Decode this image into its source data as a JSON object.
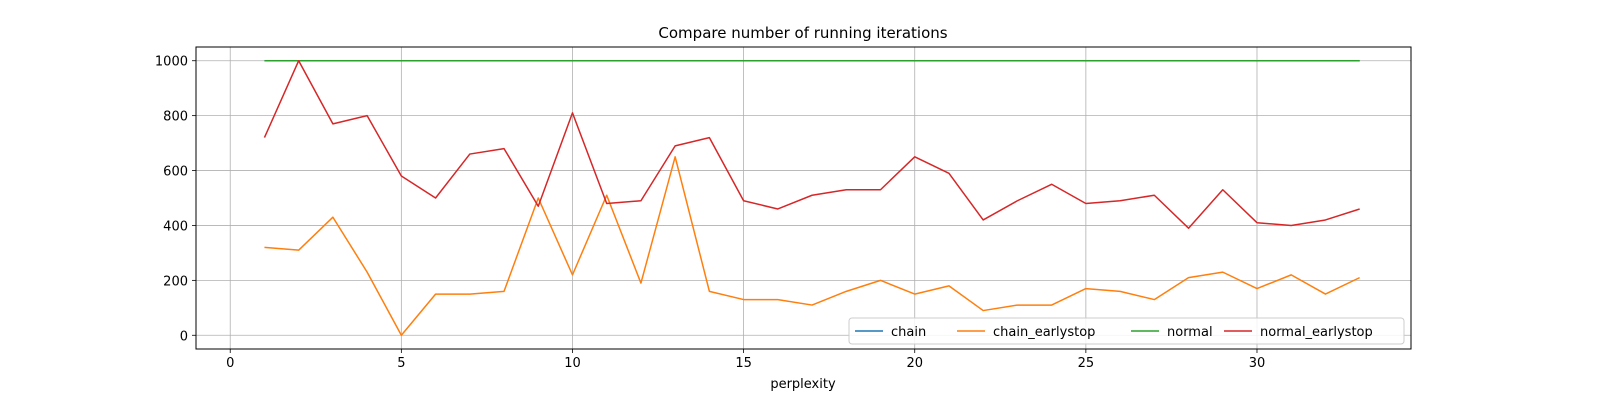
{
  "chart_data": {
    "type": "line",
    "title": "Compare number of running iterations",
    "xlabel": "perplexity",
    "ylabel": "",
    "xlim": [
      -1,
      34.5
    ],
    "ylim": [
      -50,
      1050
    ],
    "xticks": [
      0,
      5,
      10,
      15,
      20,
      25,
      30
    ],
    "yticks": [
      0,
      200,
      400,
      600,
      800,
      1000
    ],
    "grid": true,
    "legend_position": "lower-right",
    "x": [
      1,
      2,
      3,
      4,
      5,
      6,
      7,
      8,
      9,
      10,
      11,
      12,
      13,
      14,
      15,
      16,
      17,
      18,
      19,
      20,
      21,
      22,
      23,
      24,
      25,
      26,
      27,
      28,
      29,
      30,
      31,
      32,
      33
    ],
    "series": [
      {
        "name": "chain",
        "color": "#1f77b4",
        "values": [
          1000,
          1000,
          1000,
          1000,
          1000,
          1000,
          1000,
          1000,
          1000,
          1000,
          1000,
          1000,
          1000,
          1000,
          1000,
          1000,
          1000,
          1000,
          1000,
          1000,
          1000,
          1000,
          1000,
          1000,
          1000,
          1000,
          1000,
          1000,
          1000,
          1000,
          1000,
          1000,
          1000
        ]
      },
      {
        "name": "chain_earlystop",
        "color": "#ff7f0e",
        "values": [
          320,
          310,
          430,
          230,
          0,
          150,
          150,
          160,
          500,
          220,
          510,
          190,
          650,
          160,
          130,
          130,
          110,
          160,
          200,
          150,
          180,
          90,
          110,
          110,
          170,
          160,
          130,
          210,
          230,
          170,
          220,
          150,
          210
        ]
      },
      {
        "name": "normal",
        "color": "#2ca02c",
        "values": [
          1000,
          1000,
          1000,
          1000,
          1000,
          1000,
          1000,
          1000,
          1000,
          1000,
          1000,
          1000,
          1000,
          1000,
          1000,
          1000,
          1000,
          1000,
          1000,
          1000,
          1000,
          1000,
          1000,
          1000,
          1000,
          1000,
          1000,
          1000,
          1000,
          1000,
          1000,
          1000,
          1000
        ]
      },
      {
        "name": "normal_earlystop",
        "color": "#d62728",
        "values": [
          720,
          1000,
          770,
          800,
          580,
          500,
          660,
          680,
          470,
          810,
          480,
          490,
          690,
          720,
          490,
          460,
          510,
          530,
          530,
          650,
          590,
          420,
          490,
          550,
          480,
          490,
          510,
          390,
          530,
          410,
          400,
          420,
          460
        ]
      }
    ]
  }
}
